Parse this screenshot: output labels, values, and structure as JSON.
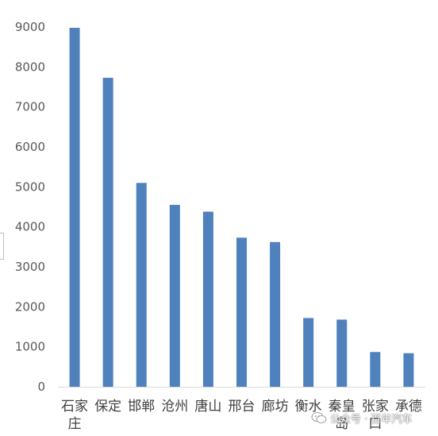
{
  "chart_data": {
    "type": "bar",
    "categories": [
      "石家庄",
      "保定",
      "邯郸",
      "沧州",
      "唐山",
      "邢台",
      "廊坊",
      "衡水",
      "秦皇岛",
      "张家口",
      "承德"
    ],
    "category_lines": [
      [
        "石家",
        "庄"
      ],
      [
        "保定"
      ],
      [
        "邯郸"
      ],
      [
        "沧州"
      ],
      [
        "唐山"
      ],
      [
        "邢台"
      ],
      [
        "廊坊"
      ],
      [
        "衡水"
      ],
      [
        "秦皇",
        "岛"
      ],
      [
        "张家",
        "口"
      ],
      [
        "承德"
      ]
    ],
    "values": [
      8980,
      7730,
      5100,
      4550,
      4380,
      3730,
      3620,
      1720,
      1680,
      870,
      840
    ],
    "ylim": [
      0,
      9000
    ],
    "yticks": [
      0,
      1000,
      2000,
      3000,
      4000,
      5000,
      6000,
      7000,
      8000,
      9000
    ],
    "title": "",
    "xlabel": "",
    "ylabel": "",
    "grid": false,
    "legend": "none",
    "bar_color": "#4f81bd"
  },
  "watermark": {
    "text": "公众号 · 百年汽车",
    "icon": "wechat-icon"
  }
}
